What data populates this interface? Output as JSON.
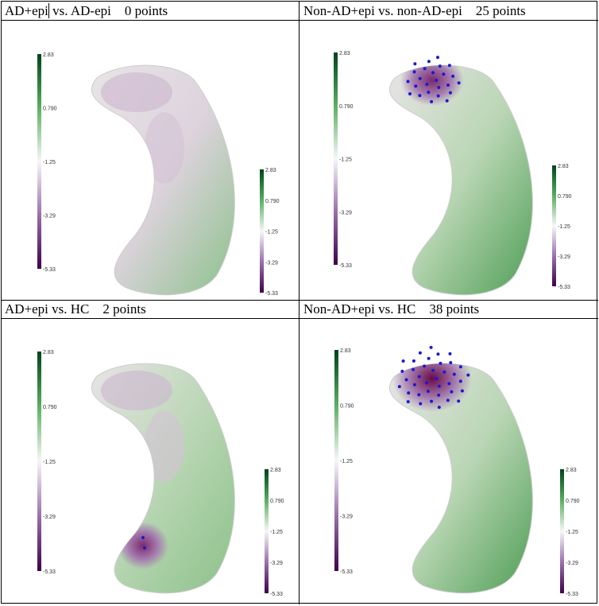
{
  "panels": [
    {
      "title": "AD+epi",
      "title_rest": " vs. AD-epi",
      "points_label": "0 points",
      "points": 0,
      "spot": null
    },
    {
      "title": "Non-AD+epi vs. non-AD-epi",
      "title_rest": "",
      "points_label": "25 points",
      "points": 25,
      "spot": "top"
    },
    {
      "title": "AD+epi vs. HC",
      "title_rest": "",
      "points_label": "2 points",
      "points": 2,
      "spot": "bottom"
    },
    {
      "title": "Non-AD+epi vs. HC",
      "title_rest": "",
      "points_label": "38 points",
      "points": 38,
      "spot": "top"
    }
  ],
  "colorbar": {
    "ticks": [
      "2.83",
      "0.790",
      "-1.25",
      "-3.29",
      "-5.33"
    ],
    "colors": [
      "#00441b",
      "#5aae61",
      "#f7f7f7",
      "#9970ab",
      "#40004b"
    ]
  },
  "point_color": "#1a1acc"
}
